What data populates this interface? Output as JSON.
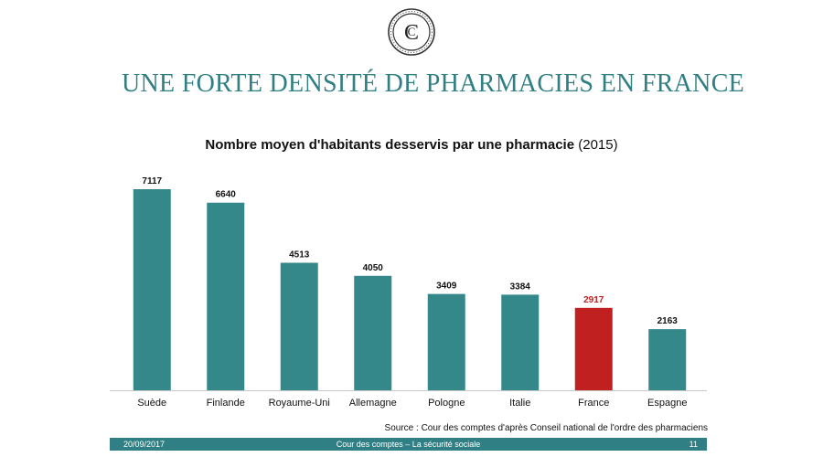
{
  "slide": {
    "title": "UNE FORTE DENSITÉ DE PHARMACIES EN FRANCE",
    "logo_icon": "cour-des-comptes-seal-icon"
  },
  "chart_data": {
    "type": "bar",
    "title_bold": "Nombre moyen d'habitants desservis par une pharmacie",
    "title_suffix": " (2015)",
    "categories": [
      "Suède",
      "Finlande",
      "Royaume-Uni",
      "Allemagne",
      "Pologne",
      "Italie",
      "France",
      "Espagne"
    ],
    "values": [
      7117,
      6640,
      4513,
      4050,
      3409,
      3384,
      2917,
      2163
    ],
    "labels": [
      "7117",
      "6640",
      "4513",
      "4050",
      "3409",
      "3384",
      "2917",
      "2163"
    ],
    "highlight_category": "France",
    "colors": {
      "bar": "#34888a",
      "highlight": "#c0201f"
    },
    "ylim": [
      0,
      7117
    ],
    "grid": false,
    "xlabel": "",
    "ylabel": ""
  },
  "source": "Source : Cour des comptes d'après Conseil national de l'ordre des pharmaciens",
  "footer": {
    "date": "20/09/2017",
    "center": "Cour des comptes – La sécurité sociale",
    "page": "11"
  }
}
